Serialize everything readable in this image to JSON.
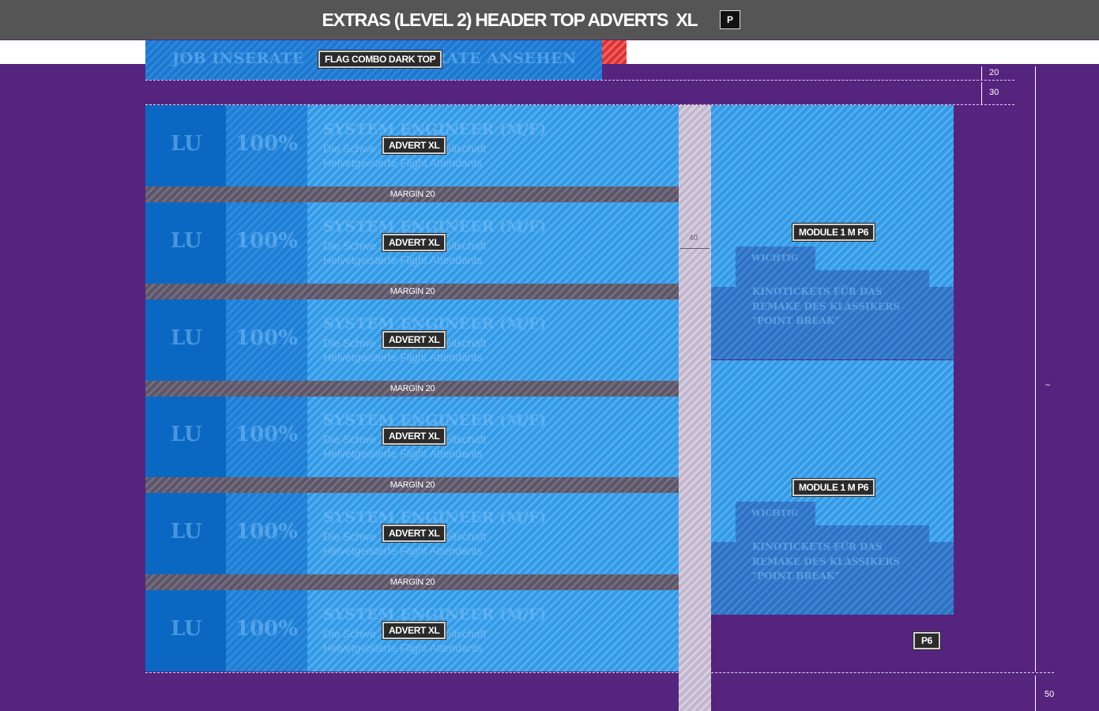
{
  "header": {
    "title": "EXTRAS (LEVEL 2) HEADER TOP ADVERTS  XL",
    "badge": "P"
  },
  "flag": {
    "label": "FLAG COMBO DARK TOP",
    "ghost_left": "JOB INSERATE",
    "ghost_right": "ERATE ANSEHEN"
  },
  "adverts": [
    {
      "label": "ADVERT XL",
      "col1": "LU",
      "col2": "100%",
      "title": "SYSTEM ENGINEER (M/F)",
      "line1": "Die Schwe",
      "line1b": "sellschaft",
      "line2": "Helvetgeisterte Flight Attendants"
    },
    {
      "label": "ADVERT XL",
      "col1": "LU",
      "col2": "100%",
      "title": "SYSTEM ENGINEER (M/F)",
      "line1": "Die Schwe",
      "line1b": "sellschaft",
      "line2": "Helvetgeisterte Flight Attendants"
    },
    {
      "label": "ADVERT XL",
      "col1": "LU",
      "col2": "100%",
      "title": "SYSTEM ENGINEER (M/F)",
      "line1": "Die Schwe",
      "line1b": "sellschaft",
      "line2": "Helvetgeisterte Flight Attendants"
    },
    {
      "label": "ADVERT XL",
      "col1": "LU",
      "col2": "100%",
      "title": "SYSTEM ENGINEER (M/F)",
      "line1": "Die Schwe",
      "line1b": "sellschaft",
      "line2": "Helvetgeisterte Flight Attendants"
    },
    {
      "label": "ADVERT XL",
      "col1": "LU",
      "col2": "100%",
      "title": "SYSTEM ENGINEER (M/F)",
      "line1": "Die Schwe",
      "line1b": "sellschaft",
      "line2": "Helvetgeisterte Flight Attendants"
    },
    {
      "label": "ADVERT XL",
      "col1": "LU",
      "col2": "100%",
      "title": "SYSTEM ENGINEER (M/F)",
      "line1": "Die Schwe",
      "line1b": "sellschaft",
      "line2": "Helvetgeisterte Flight Attendants"
    }
  ],
  "margins": [
    "MARGIN 20",
    "MARGIN 20",
    "MARGIN 20",
    "MARGIN 20",
    "MARGIN 20"
  ],
  "gutter": {
    "label": "40"
  },
  "modules": [
    {
      "label": "MODULE 1 M P6",
      "tab": "WICHTIG",
      "text1": "KINOTICKETS FÜR DAS",
      "text2": "REMAKE  DES KLASSIKERS",
      "text3": "\"POINT BREAK\""
    },
    {
      "label": "MODULE 1 M P6",
      "tab": "WICHTIG",
      "text1": "KINOTICKETS FÜR DAS",
      "text2": "REMAKE  DES KLASSIKERS",
      "text3": "\"POINT BREAK\""
    }
  ],
  "p6_badge": "P6",
  "dimensions": {
    "d20": "20",
    "d30": "30",
    "tilde": "~",
    "d50": "50"
  },
  "colors": {
    "background": "#55247e",
    "header_bar": "#555555",
    "advert_blue": "#2f9ae8",
    "flag_red": "#e0302f"
  }
}
